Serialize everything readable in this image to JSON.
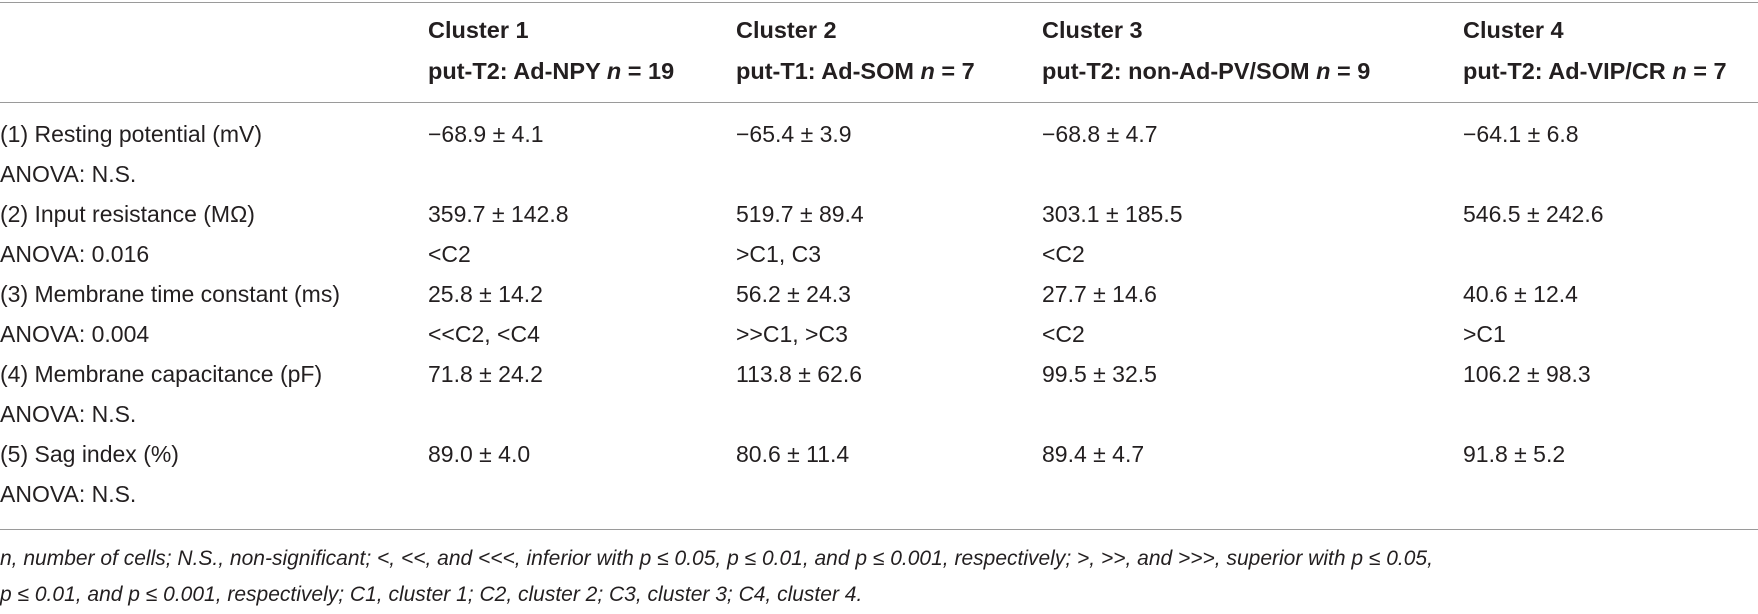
{
  "table": {
    "columns": [
      {
        "title": "Cluster 1",
        "subtitle": "put-T2: Ad-NPY",
        "n_label": "n",
        "n_value": "= 19"
      },
      {
        "title": "Cluster 2",
        "subtitle": "put-T1: Ad-SOM",
        "n_label": "n",
        "n_value": "= 7"
      },
      {
        "title": "Cluster 3",
        "subtitle": "put-T2: non-Ad-PV/SOM",
        "n_label": "n",
        "n_value": "= 9"
      },
      {
        "title": "Cluster 4",
        "subtitle": "put-T2: Ad-VIP/CR",
        "n_label": "n",
        "n_value": "= 7"
      }
    ],
    "rows": [
      {
        "label": "(1) Resting potential (mV)",
        "anova": "ANOVA: N.S.",
        "values": [
          "−68.9 ± 4.1",
          "−65.4 ± 3.9",
          "−68.8 ± 4.7",
          "−64.1 ± 6.8"
        ],
        "posthoc": [
          "",
          "",
          "",
          ""
        ]
      },
      {
        "label": "(2) Input resistance (MΩ)",
        "anova": "ANOVA: 0.016",
        "values": [
          "359.7 ± 142.8",
          "519.7 ± 89.4",
          "303.1 ± 185.5",
          "546.5 ± 242.6"
        ],
        "posthoc": [
          "<C2",
          ">C1, C3",
          "<C2",
          ""
        ]
      },
      {
        "label": "(3) Membrane time constant (ms)",
        "anova": "ANOVA: 0.004",
        "values": [
          "25.8 ± 14.2",
          "56.2 ± 24.3",
          "27.7 ± 14.6",
          "40.6 ± 12.4"
        ],
        "posthoc": [
          "<<C2, <C4",
          ">>C1, >C3",
          "<C2",
          ">C1"
        ]
      },
      {
        "label": "(4) Membrane capacitance (pF)",
        "anova": "ANOVA: N.S.",
        "values": [
          "71.8 ± 24.2",
          "113.8 ± 62.6",
          "99.5 ± 32.5",
          "106.2 ± 98.3"
        ],
        "posthoc": [
          "",
          "",
          "",
          ""
        ]
      },
      {
        "label": "(5) Sag index (%)",
        "anova": "ANOVA: N.S.",
        "values": [
          "89.0 ± 4.0",
          "80.6 ± 11.4",
          "89.4 ± 4.7",
          "91.8 ± 5.2"
        ],
        "posthoc": [
          "",
          "",
          "",
          ""
        ]
      }
    ]
  },
  "footnote": {
    "line1": "n, number of cells; N.S., non-significant; <, <<, and <<<, inferior with p ≤ 0.05, p ≤ 0.01, and p ≤ 0.001, respectively; >, >>, and >>>, superior with p ≤ 0.05,",
    "line2": "p ≤ 0.01, and p ≤ 0.001, respectively; C1, cluster 1; C2, cluster 2; C3, cluster 3; C4, cluster 4."
  }
}
